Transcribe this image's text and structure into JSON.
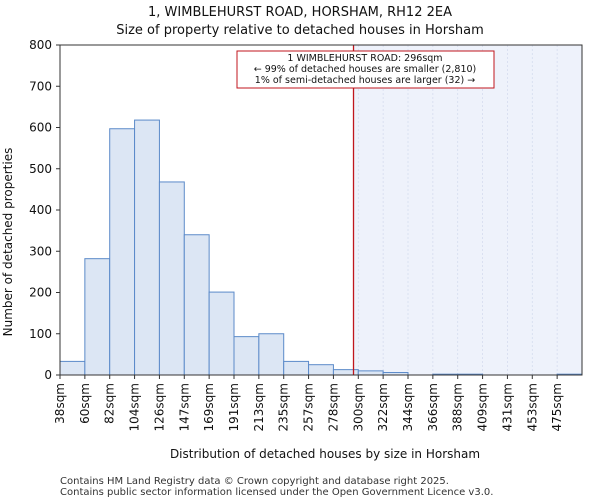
{
  "chart_data": {
    "type": "bar",
    "title_line1": "1, WIMBLEHURST ROAD, HORSHAM, RH12 2EA",
    "title_line2": "Size of property relative to detached houses in Horsham",
    "xlabel": "Distribution of detached houses by size in Horsham",
    "ylabel": "Number of detached properties",
    "ylim": [
      0,
      800
    ],
    "yticks": [
      "0",
      "100",
      "200",
      "300",
      "400",
      "500",
      "600",
      "700",
      "800"
    ],
    "categories": [
      "38sqm",
      "60sqm",
      "82sqm",
      "104sqm",
      "126sqm",
      "147sqm",
      "169sqm",
      "191sqm",
      "213sqm",
      "235sqm",
      "257sqm",
      "278sqm",
      "300sqm",
      "322sqm",
      "344sqm",
      "366sqm",
      "388sqm",
      "409sqm",
      "431sqm",
      "453sqm",
      "475sqm"
    ],
    "values": [
      33,
      282,
      597,
      618,
      468,
      340,
      201,
      93,
      100,
      33,
      25,
      13,
      10,
      6,
      0,
      2,
      2,
      0,
      0,
      0,
      2
    ],
    "subject_value_sqm": 296,
    "annotation": {
      "line1": "1 WIMBLEHURST ROAD: 296sqm",
      "line2": "← 99% of detached houses are smaller (2,810)",
      "line3": "1% of semi-detached houses are larger (32) →"
    },
    "colors": {
      "bar_fill": "#dce6f4",
      "bar_stroke": "#5b8ac9",
      "marker": "#c0161d",
      "shade": "#eef2fb"
    }
  },
  "footer": {
    "line1": "Contains HM Land Registry data © Crown copyright and database right 2025.",
    "line2": "Contains public sector information licensed under the Open Government Licence v3.0."
  }
}
